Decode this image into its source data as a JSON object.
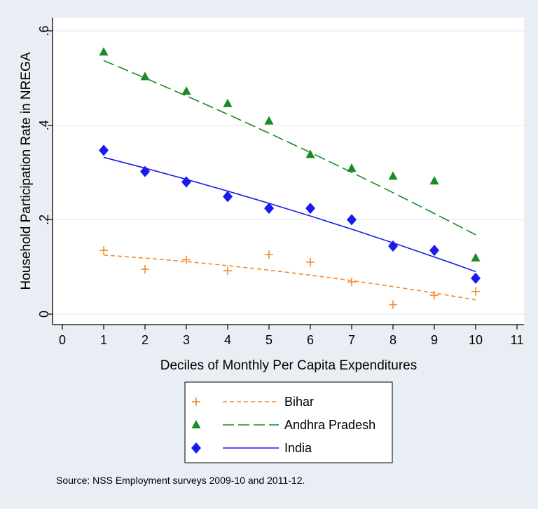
{
  "chart_data": {
    "type": "scatter",
    "title": "",
    "xlabel": "Deciles of Monthly Per Capita Expenditures",
    "ylabel": "Household Participation Rate in NREGA",
    "xlim": [
      0,
      11
    ],
    "ylim": [
      0,
      0.6
    ],
    "x_ticks": [
      0,
      1,
      2,
      3,
      4,
      5,
      6,
      7,
      8,
      9,
      10,
      11
    ],
    "x_tick_labels": [
      "0",
      "1",
      "2",
      "3",
      "4",
      "5",
      "6",
      "7",
      "8",
      "9",
      "10",
      "11"
    ],
    "y_ticks": [
      0,
      0.2,
      0.4,
      0.6
    ],
    "y_tick_labels": [
      "0",
      ".2",
      ".4",
      ".6"
    ],
    "grid": "horizontal",
    "legend_placement": "bottom-center",
    "x": [
      1,
      2,
      3,
      4,
      5,
      6,
      7,
      8,
      9,
      10
    ],
    "series": [
      {
        "name": "Bihar",
        "marker": "plus",
        "line_style": "short-dash",
        "color": "#f28c28",
        "values": [
          0.135,
          0.095,
          0.115,
          0.092,
          0.126,
          0.11,
          0.068,
          0.02,
          0.04,
          0.048
        ],
        "fit_start": 0.125,
        "fit_end": 0.03
      },
      {
        "name": "Andhra Pradesh",
        "marker": "triangle",
        "line_style": "long-dash",
        "color": "#1a8a24",
        "values": [
          0.555,
          0.503,
          0.472,
          0.446,
          0.409,
          0.338,
          0.309,
          0.292,
          0.282,
          0.119
        ],
        "fit_start": 0.537,
        "fit_end": 0.168
      },
      {
        "name": "India",
        "marker": "diamond",
        "line_style": "solid",
        "color": "#1a1aee",
        "values": [
          0.347,
          0.302,
          0.28,
          0.249,
          0.224,
          0.224,
          0.2,
          0.144,
          0.135,
          0.076
        ],
        "fit_start": 0.332,
        "fit_end": 0.09
      }
    ]
  },
  "note": "Source: NSS Employment surveys 2009-10 and 2011-12.",
  "colors": {
    "background": "#e8eef3",
    "plot_area": "#ffffff",
    "grid": "#e6ecef",
    "axis": "#000000"
  }
}
